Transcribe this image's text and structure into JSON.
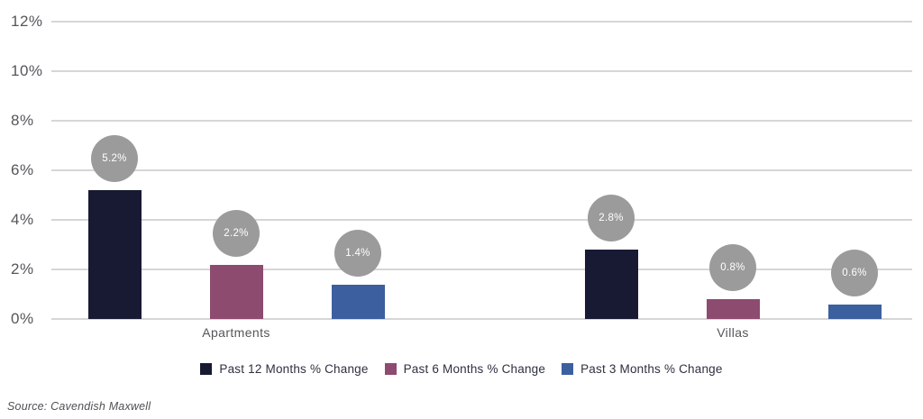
{
  "chart_data": {
    "type": "bar",
    "title": "",
    "xlabel": "",
    "ylabel": "",
    "categories": [
      "Apartments",
      "Villas"
    ],
    "series": [
      {
        "name": "Past 12 Months % Change",
        "color": "#181a33",
        "values": [
          5.2,
          2.8
        ],
        "data_labels": [
          "5.2%",
          "2.8%"
        ]
      },
      {
        "name": "Past 6 Months % Change",
        "color": "#8d4b70",
        "values": [
          2.2,
          0.8
        ],
        "data_labels": [
          "2.2%",
          "0.8%"
        ]
      },
      {
        "name": "Past 3 Months % Change",
        "color": "#3c5f9f",
        "values": [
          1.4,
          0.6
        ],
        "data_labels": [
          "1.4%",
          "0.6%"
        ]
      }
    ],
    "ylim": [
      0,
      12
    ],
    "y_ticks": [
      12,
      10,
      8,
      6,
      4,
      2,
      0
    ],
    "y_tick_labels": [
      "12%",
      "10%",
      "8%",
      "6%",
      "4%",
      "2%",
      "0%"
    ],
    "grid": true,
    "legend_position": "bottom",
    "data_label_style": "gray-circle"
  },
  "colors": {
    "background": "#ffffff",
    "gridline": "#d6d6d6",
    "axis_text": "#55565a",
    "category_text": "#55565a",
    "legend_text": "#2f3040",
    "data_label_circle": "#9b9b9b",
    "data_label_text": "#ffffff"
  },
  "source": {
    "label": "Source: Cavendish Maxwell"
  }
}
